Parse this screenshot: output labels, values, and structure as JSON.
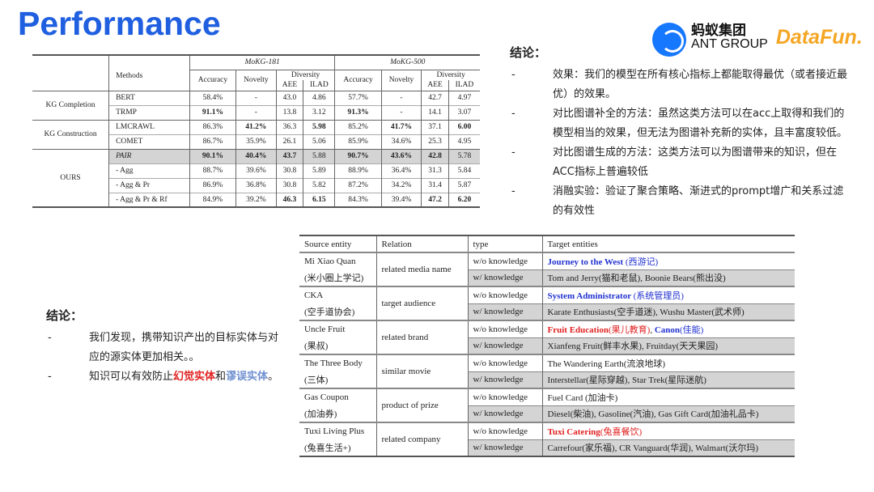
{
  "title": "Performance",
  "logos": {
    "ant_cn": "蚂蚁集团",
    "ant_en": "ANT GROUP",
    "datafun": "DataFun."
  },
  "table1": {
    "header": {
      "methods": "Methods",
      "ds1": "MoKG-181",
      "ds2": "MoKG-500",
      "accuracy": "Accuracy",
      "novelty": "Novelty",
      "diversity": "Diversity",
      "aee": "AEE",
      "ilad": "ILAD"
    },
    "groups": [
      {
        "name": "KG Completion",
        "rows": [
          {
            "method": "BERT",
            "values": [
              "58.4%",
              "-",
              "43.0",
              "4.86",
              "57.7%",
              "-",
              "42.7",
              "4.97"
            ],
            "bold": []
          },
          {
            "method": "TRMP",
            "values": [
              "91.1%",
              "-",
              "13.8",
              "3.12",
              "91.3%",
              "-",
              "14.1",
              "3.07"
            ],
            "bold": [
              0,
              4
            ]
          }
        ]
      },
      {
        "name": "KG Construction",
        "rows": [
          {
            "method": "LMCRAWL",
            "values": [
              "86.3%",
              "41.2%",
              "36.3",
              "5.98",
              "85.2%",
              "41.7%",
              "37.1",
              "6.00"
            ],
            "bold": [
              1,
              3,
              5,
              7
            ]
          },
          {
            "method": "COMET",
            "values": [
              "86.7%",
              "35.9%",
              "26.1",
              "5.06",
              "85.9%",
              "34.6%",
              "25.3",
              "4.95"
            ],
            "bold": []
          }
        ]
      },
      {
        "name": "OURS",
        "rows": [
          {
            "method": "PAIR",
            "italic": true,
            "highlight": true,
            "values": [
              "90.1%",
              "40.4%",
              "43.7",
              "5.88",
              "90.7%",
              "43.6%",
              "42.8",
              "5.78"
            ],
            "bold": [
              0,
              1,
              2,
              4,
              5,
              6
            ]
          },
          {
            "method": "- Agg",
            "values": [
              "88.7%",
              "39.6%",
              "30.8",
              "5.89",
              "88.9%",
              "36.4%",
              "31.3",
              "5.84"
            ],
            "bold": []
          },
          {
            "method": "- Agg & Pr",
            "values": [
              "86.9%",
              "36.8%",
              "30.8",
              "5.82",
              "87.2%",
              "34.2%",
              "31.4",
              "5.87"
            ],
            "bold": []
          },
          {
            "method": "- Agg & Pr & Rf",
            "values": [
              "84.9%",
              "39.2%",
              "46.3",
              "6.15",
              "84.3%",
              "39.4%",
              "47.2",
              "6.20"
            ],
            "bold": [
              2,
              3,
              6,
              7
            ]
          }
        ]
      }
    ]
  },
  "conclusion_right": {
    "heading": "结论：",
    "items": [
      "效果：我们的模型在所有核心指标上都能取得最优（或者接近最优）的效果。",
      "对比图谱补全的方法：虽然这类方法可以在acc上取得和我们的模型相当的效果，但无法为图谱补充新的实体，且丰富度较低。",
      "对比图谱生成的方法：这类方法可以为图谱带来的知识，但在ACC指标上普遍较低",
      "消融实验：验证了聚合策略、渐进式的prompt增广和关系过滤的有效性"
    ]
  },
  "conclusion_left": {
    "heading": "结论：",
    "item1": "我们发现，携带知识产出的目标实体与对应的源实体更加相关。。",
    "item2": [
      {
        "text": "知识可以有效防止"
      },
      {
        "text": "幻觉实体",
        "color": "#e02020",
        "bold": true
      },
      {
        "text": "和"
      },
      {
        "text": "谬误实体",
        "color": "#6f8fd0",
        "bold": true
      },
      {
        "text": "。"
      }
    ]
  },
  "table2": {
    "header": {
      "source": "Source entity",
      "relation": "Relation",
      "type": "type",
      "target": "Target entities"
    },
    "colors": {
      "red": "#e02020",
      "blue": "#2030d0"
    },
    "groups": [
      {
        "source": "Mi Xiao Quan",
        "source_cn": "(米小圈上学记)",
        "relation": "related media name",
        "wo": [
          {
            "text": "Journey to the West ",
            "color": "blue",
            "bold": true
          },
          {
            "text": "(西游记)",
            "color": "blue"
          }
        ],
        "w": [
          {
            "text": "Tom and Jerry(猫和老鼠), Boonie Bears(熊出没)"
          }
        ]
      },
      {
        "source": "CKA",
        "source_cn": "(空手道协会)",
        "relation": "target audience",
        "wo": [
          {
            "text": "System Administrator ",
            "color": "blue",
            "bold": true
          },
          {
            "text": "(系统管理员)",
            "color": "blue"
          }
        ],
        "w": [
          {
            "text": "Karate Enthusiasts(空手道迷), Wushu Master(武术师)"
          }
        ]
      },
      {
        "source": "Uncle Fruit",
        "source_cn": "(果叔)",
        "relation": "related brand",
        "wo": [
          {
            "text": "Fruit Education",
            "color": "red",
            "bold": true
          },
          {
            "text": "(果儿教育)",
            "color": "red"
          },
          {
            "text": ", "
          },
          {
            "text": "Canon",
            "color": "blue",
            "bold": true
          },
          {
            "text": "(佳能)",
            "color": "blue"
          }
        ],
        "w": [
          {
            "text": "Xianfeng Fruit(鲜丰水果), Fruitday(天天果园)"
          }
        ]
      },
      {
        "source": "The Three Body",
        "source_cn": "(三体)",
        "relation": "similar movie",
        "wo": [
          {
            "text": "The Wandering Earth(流浪地球)"
          }
        ],
        "w": [
          {
            "text": "Interstellar(星际穿越), Star Trek(星际迷航)"
          }
        ]
      },
      {
        "source": "Gas Coupon",
        "source_cn": "(加油券)",
        "relation": "product of prize",
        "wo": [
          {
            "text": "Fuel Card (加油卡)"
          }
        ],
        "w": [
          {
            "text": "Diesel(柴油), Gasoline(汽油), Gas Gift Card(加油礼品卡)"
          }
        ]
      },
      {
        "source": "Tuxi Living Plus",
        "source_cn": "(兔喜生活+)",
        "relation": "related company",
        "wo": [
          {
            "text": "Tuxi Catering",
            "color": "red",
            "bold": true
          },
          {
            "text": "(兔喜餐饮)",
            "color": "red"
          }
        ],
        "w": [
          {
            "text": "Carrefour(家乐福), CR Vanguard(华润), Walmart(沃尔玛)"
          }
        ]
      }
    ],
    "wo_label": "w/o knowledge",
    "w_label": "w/ knowledge"
  }
}
